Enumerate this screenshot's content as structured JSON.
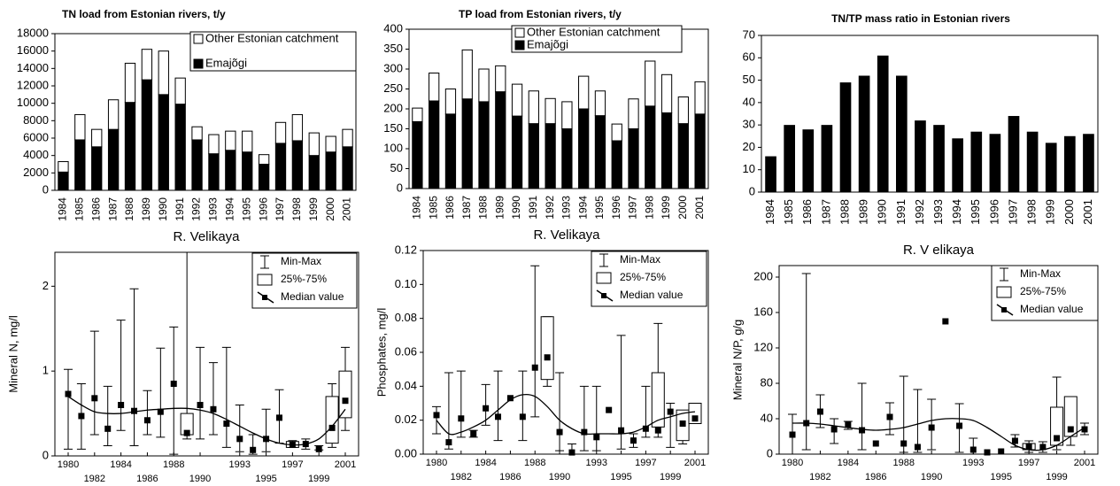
{
  "chart_data": [
    {
      "type": "stacked_bar",
      "title": "TN load from Estonian rivers, t/y",
      "categories": [
        "1984",
        "1985",
        "1986",
        "1987",
        "1988",
        "1989",
        "1990",
        "1991",
        "1992",
        "1993",
        "1994",
        "1995",
        "1996",
        "1997",
        "1998",
        "1999",
        "2000",
        "2001"
      ],
      "series": [
        {
          "name": "Emajõgi",
          "color": "#000000",
          "values": [
            2100,
            5800,
            5000,
            7000,
            10100,
            12700,
            11000,
            9900,
            5800,
            4200,
            4600,
            4400,
            3000,
            5400,
            5700,
            4000,
            4400,
            5000
          ]
        },
        {
          "name": "Other Estonian catchment",
          "color": "#ffffff",
          "values": [
            1200,
            2900,
            2000,
            3400,
            4500,
            3500,
            5000,
            3000,
            1500,
            2200,
            2200,
            2400,
            1100,
            2400,
            3000,
            2600,
            1800,
            2000
          ]
        }
      ],
      "ylim": [
        0,
        18000
      ],
      "yticks": [
        0,
        2000,
        4000,
        6000,
        8000,
        10000,
        12000,
        14000,
        16000,
        18000
      ]
    },
    {
      "type": "stacked_bar",
      "title": "TP load from Estonian rivers, t/y",
      "categories": [
        "1984",
        "1985",
        "1986",
        "1987",
        "1988",
        "1989",
        "1990",
        "1991",
        "1992",
        "1993",
        "1994",
        "1995",
        "1996",
        "1997",
        "1998",
        "1999",
        "2000",
        "2001"
      ],
      "series": [
        {
          "name": "Emajõgi",
          "color": "#000000",
          "values": [
            168,
            220,
            187,
            225,
            218,
            243,
            182,
            163,
            163,
            150,
            200,
            183,
            120,
            150,
            207,
            190,
            163,
            187
          ]
        },
        {
          "name": "Other Estonian catchment",
          "color": "#ffffff",
          "values": [
            34,
            70,
            63,
            123,
            82,
            65,
            80,
            82,
            63,
            68,
            82,
            62,
            42,
            75,
            113,
            96,
            67,
            81
          ]
        }
      ],
      "ylim": [
        0,
        400
      ],
      "yticks": [
        0,
        50,
        100,
        150,
        200,
        250,
        300,
        350,
        400
      ]
    },
    {
      "type": "bar",
      "title": "TN/TP mass ratio in Estonian rivers",
      "categories": [
        "1984",
        "1985",
        "1986",
        "1987",
        "1988",
        "1989",
        "1990",
        "1991",
        "1992",
        "1993",
        "1994",
        "1995",
        "1996",
        "1997",
        "1998",
        "1999",
        "2000",
        "2001"
      ],
      "values": [
        16,
        30,
        28,
        30,
        49,
        52,
        61,
        52,
        32,
        30,
        24,
        27,
        26,
        34,
        27,
        22,
        25,
        26
      ],
      "color": "#000000",
      "ylim": [
        0,
        70
      ],
      "yticks": [
        0,
        10,
        20,
        30,
        40,
        50,
        60,
        70
      ]
    },
    {
      "type": "box",
      "title": "R. Velikaya",
      "y_label": "Mineral N, mg/l",
      "categories": [
        "1980",
        null,
        "1982",
        null,
        "1984",
        null,
        "1986",
        null,
        "1988",
        null,
        "1990",
        null,
        null,
        "1993",
        null,
        "1995",
        null,
        "1997",
        null,
        "1999",
        null,
        "2001"
      ],
      "legend": [
        "Min-Max",
        "25%-75%",
        "Median value"
      ],
      "min": [
        0.08,
        0.08,
        0.25,
        0.12,
        0.3,
        0.12,
        0.25,
        0.22,
        0.02,
        0.2,
        0.2,
        0.25,
        0.1,
        0.05,
        0.02,
        0.05,
        0.15,
        0.1,
        0.08,
        0.07,
        0.1,
        0.3
      ],
      "max": [
        1.02,
        0.85,
        1.47,
        0.82,
        1.6,
        1.97,
        0.77,
        1.27,
        1.52,
        2.4,
        1.28,
        1.1,
        1.28,
        0.6,
        0.25,
        0.55,
        0.78,
        0.18,
        0.2,
        0.12,
        0.85,
        1.28
      ],
      "q1": [
        null,
        null,
        null,
        null,
        null,
        null,
        null,
        null,
        null,
        0.25,
        null,
        null,
        null,
        null,
        null,
        null,
        null,
        0.1,
        null,
        null,
        0.15,
        0.45
      ],
      "q3": [
        null,
        null,
        null,
        null,
        null,
        null,
        null,
        null,
        null,
        0.5,
        null,
        null,
        null,
        null,
        null,
        null,
        null,
        0.17,
        null,
        null,
        0.7,
        1.0
      ],
      "median": [
        0.73,
        0.47,
        0.68,
        0.32,
        0.6,
        0.53,
        0.42,
        0.52,
        0.85,
        0.27,
        0.6,
        0.55,
        0.38,
        0.2,
        0.07,
        0.2,
        0.45,
        0.13,
        0.14,
        0.08,
        0.33,
        0.65
      ],
      "trend": [
        0.7,
        0.6,
        0.52,
        0.5,
        0.5,
        0.52,
        0.54,
        0.55,
        0.56,
        0.56,
        0.54,
        0.5,
        0.43,
        0.35,
        0.27,
        0.2,
        0.15,
        0.13,
        0.14,
        0.2,
        0.35,
        0.55
      ],
      "ylim": [
        0,
        2.4
      ],
      "yticks": [
        0,
        1,
        2
      ]
    },
    {
      "type": "box",
      "title": "R. Velikaya",
      "y_label": "Phosphates, mg/l",
      "categories": [
        "1980",
        null,
        "1982",
        null,
        "1984",
        null,
        "1986",
        null,
        "1988",
        null,
        "1990",
        null,
        null,
        "1993",
        null,
        "1995",
        null,
        "1997",
        null,
        "1999",
        null,
        "2001"
      ],
      "legend": [
        "Min-Max",
        "25%-75%",
        "Median value"
      ],
      "min": [
        0.012,
        0.003,
        0.01,
        0.01,
        0.017,
        0.008,
        null,
        0.008,
        0.022,
        0.04,
        0.002,
        0.0,
        0.002,
        0.002,
        null,
        0.003,
        0.004,
        0.01,
        0.01,
        0.004,
        0.006,
        0.018
      ],
      "max": [
        0.028,
        0.048,
        0.049,
        0.014,
        0.041,
        0.049,
        null,
        0.049,
        0.111,
        0.081,
        0.048,
        0.006,
        0.04,
        0.04,
        null,
        0.07,
        0.012,
        0.04,
        0.077,
        0.03,
        0.025,
        0.03
      ],
      "q1": [
        null,
        null,
        null,
        null,
        null,
        null,
        null,
        null,
        null,
        0.044,
        null,
        null,
        null,
        null,
        null,
        null,
        null,
        null,
        0.016,
        null,
        0.008,
        0.018
      ],
      "q3": [
        null,
        null,
        null,
        null,
        null,
        null,
        null,
        null,
        null,
        0.081,
        null,
        null,
        null,
        null,
        null,
        null,
        null,
        null,
        0.048,
        null,
        0.026,
        0.03
      ],
      "median": [
        0.023,
        0.007,
        0.021,
        0.012,
        0.027,
        0.022,
        0.033,
        0.022,
        0.051,
        0.057,
        0.013,
        0.001,
        0.013,
        0.01,
        0.026,
        0.014,
        0.008,
        0.015,
        0.014,
        0.025,
        0.018,
        0.021
      ],
      "trend": [
        0.02,
        0.012,
        0.013,
        0.016,
        0.02,
        0.026,
        0.032,
        0.035,
        0.034,
        0.028,
        0.02,
        0.015,
        0.012,
        0.012,
        0.012,
        0.012,
        0.013,
        0.016,
        0.02,
        0.022,
        0.024,
        0.025
      ],
      "ylim": [
        0,
        0.12
      ],
      "yticks": [
        {
          "value": 0,
          "label": "0.00"
        },
        {
          "value": 0.02,
          "label": "0.02"
        },
        {
          "value": 0.04,
          "label": "0.04"
        },
        {
          "value": 0.06,
          "label": "0.06"
        },
        {
          "value": 0.08,
          "label": "0.08"
        },
        {
          "value": 0.1,
          "label": "0.10"
        },
        {
          "value": 0.12,
          "label": "0.12"
        }
      ]
    },
    {
      "type": "box",
      "title": "R. V elikaya",
      "y_label": "Mineral N/P, g/g",
      "categories": [
        "1980",
        null,
        "1982",
        null,
        "1984",
        null,
        "1986",
        null,
        "1988",
        null,
        "1990",
        null,
        null,
        "1993",
        null,
        "1995",
        null,
        "1997",
        null,
        "1999",
        null,
        "2001"
      ],
      "legend": [
        "Min-Max",
        "25%-75%",
        "Median value"
      ],
      "min": [
        0,
        5,
        30,
        12,
        28,
        5,
        null,
        22,
        2,
        2,
        5,
        null,
        2,
        0,
        null,
        null,
        8,
        2,
        2,
        5,
        10,
        22
      ],
      "max": [
        45,
        204,
        67,
        40,
        37,
        80,
        null,
        58,
        88,
        73,
        62,
        null,
        57,
        18,
        null,
        null,
        22,
        15,
        14,
        87,
        65,
        35
      ],
      "q1": [
        null,
        null,
        null,
        null,
        null,
        null,
        null,
        null,
        null,
        null,
        null,
        null,
        null,
        null,
        null,
        null,
        null,
        5,
        null,
        10,
        20,
        null
      ],
      "q3": [
        null,
        null,
        null,
        null,
        null,
        null,
        null,
        null,
        null,
        null,
        null,
        null,
        null,
        null,
        null,
        null,
        null,
        12,
        null,
        53,
        65,
        null
      ],
      "median": [
        22,
        35,
        48,
        28,
        33,
        27,
        12,
        42,
        12,
        8,
        30,
        150,
        32,
        5,
        2,
        3,
        15,
        8,
        8,
        18,
        28,
        28
      ],
      "trend": [
        35,
        35,
        34,
        32,
        30,
        28,
        27,
        28,
        30,
        34,
        38,
        40,
        40,
        38,
        30,
        20,
        10,
        5,
        5,
        10,
        20,
        30
      ],
      "ylim": [
        0,
        213
      ],
      "yticks": [
        0,
        40,
        80,
        120,
        160,
        200
      ]
    }
  ]
}
